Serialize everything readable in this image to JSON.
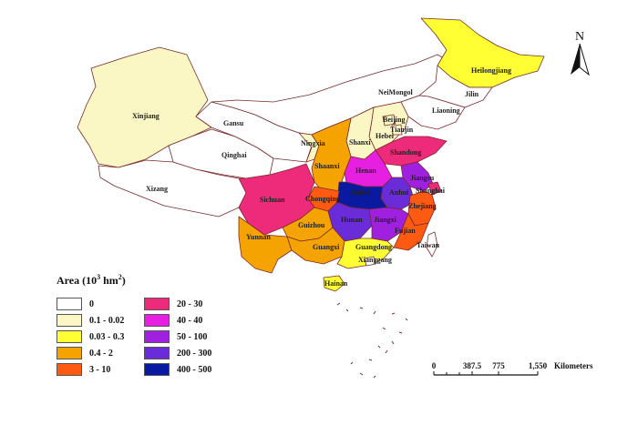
{
  "legend": {
    "title_prefix": "Area (10",
    "title_exp": "3",
    "title_suffix": " hm",
    "title_exp2": "2",
    "title_end": ")",
    "classes": [
      {
        "label": "0",
        "color": "#ffffff"
      },
      {
        "label": "0.1 - 0.02",
        "color": "#fbf7c4"
      },
      {
        "label": "0.03 - 0.3",
        "color": "#ffff33"
      },
      {
        "label": "0.4 - 2",
        "color": "#f5a300"
      },
      {
        "label": "3 - 10",
        "color": "#ff5a12"
      },
      {
        "label": "20 - 30",
        "color": "#ee2a7b"
      },
      {
        "label": "40 - 40",
        "color": "#e71fe0"
      },
      {
        "label": "50 - 100",
        "color": "#a020e0"
      },
      {
        "label": "200 - 300",
        "color": "#6a2bd8"
      },
      {
        "label": "400 - 500",
        "color": "#0a1aa0"
      }
    ]
  },
  "north_arrow": {
    "label": "N"
  },
  "scale_bar": {
    "ticks": [
      "0",
      "387.5",
      "775",
      "1,550"
    ],
    "unit": "Kilometers"
  },
  "provinces": [
    {
      "name": "Heilongjiang",
      "color": "#ffff33"
    },
    {
      "name": "Jilin",
      "color": "#ffffff"
    },
    {
      "name": "Liaoning",
      "color": "#ffffff"
    },
    {
      "name": "NeiMongol",
      "color": "#ffffff"
    },
    {
      "name": "Xinjiang",
      "color": "#fbf7c4"
    },
    {
      "name": "Gansu",
      "color": "#ffffff"
    },
    {
      "name": "Qinghai",
      "color": "#ffffff"
    },
    {
      "name": "Xizang",
      "color": "#ffffff"
    },
    {
      "name": "Ningxia",
      "color": "#fbf7c4"
    },
    {
      "name": "Beijing",
      "color": "#fbf7c4"
    },
    {
      "name": "Tianjin",
      "color": "#fbf7c4"
    },
    {
      "name": "Hebei",
      "color": "#fbf7c4"
    },
    {
      "name": "Shanxi",
      "color": "#fbf7c4"
    },
    {
      "name": "Shandong",
      "color": "#ee2a7b"
    },
    {
      "name": "Shaanxi",
      "color": "#f5a300"
    },
    {
      "name": "Henan",
      "color": "#e71fe0"
    },
    {
      "name": "Jiangsu",
      "color": "#a020e0"
    },
    {
      "name": "Shanghai",
      "color": "#ee2a7b"
    },
    {
      "name": "Anhui",
      "color": "#6a2bd8"
    },
    {
      "name": "Hubei",
      "color": "#0a1aa0"
    },
    {
      "name": "Sichuan",
      "color": "#ee2a7b"
    },
    {
      "name": "Chongqing",
      "color": "#ff5a12"
    },
    {
      "name": "Zhejiang",
      "color": "#ff5a12"
    },
    {
      "name": "Hunan",
      "color": "#6a2bd8"
    },
    {
      "name": "Jiangxi",
      "color": "#a020e0"
    },
    {
      "name": "Guizhou",
      "color": "#f5a300"
    },
    {
      "name": "Yunnan",
      "color": "#f5a300"
    },
    {
      "name": "Guangxi",
      "color": "#f5a300"
    },
    {
      "name": "Guangdong",
      "color": "#ffff33"
    },
    {
      "name": "Fujian",
      "color": "#ff5a12"
    },
    {
      "name": "Taiwan",
      "color": "#ffffff"
    },
    {
      "name": "Xianggang",
      "color": "#ffffff"
    },
    {
      "name": "Hainan",
      "color": "#ffff33"
    }
  ]
}
